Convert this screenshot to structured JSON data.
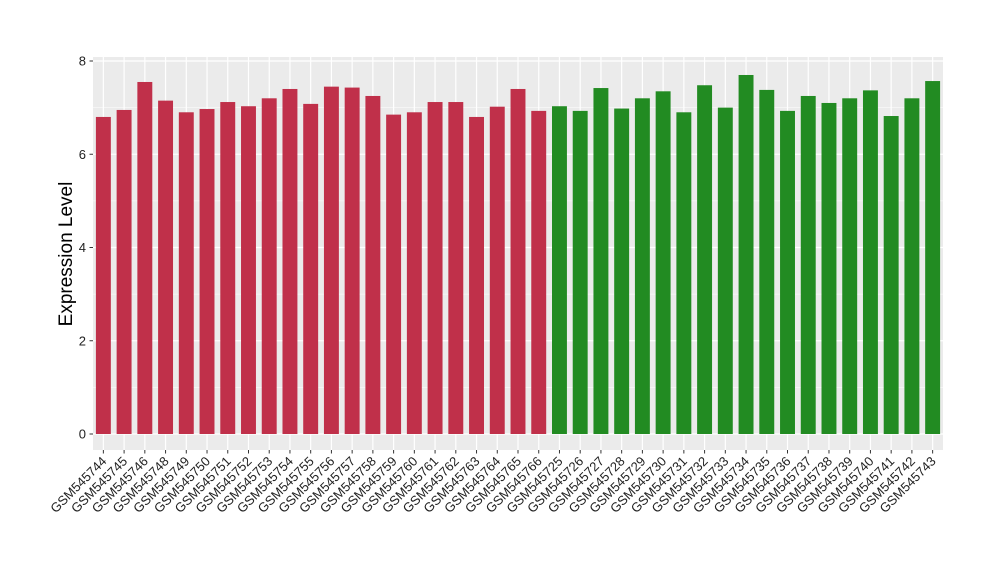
{
  "chart_data": {
    "type": "bar",
    "title": "",
    "xlabel": "",
    "ylabel": "Expression Level",
    "ylim": [
      0,
      8
    ],
    "yticks": [
      0,
      2,
      4,
      6,
      8
    ],
    "grid": true,
    "legend": "none",
    "categories": [
      "GSM545744",
      "GSM545745",
      "GSM545746",
      "GSM545748",
      "GSM545749",
      "GSM545750",
      "GSM545751",
      "GSM545752",
      "GSM545753",
      "GSM545754",
      "GSM545755",
      "GSM545756",
      "GSM545757",
      "GSM545758",
      "GSM545759",
      "GSM545760",
      "GSM545761",
      "GSM545762",
      "GSM545763",
      "GSM545764",
      "GSM545765",
      "GSM545766",
      "GSM545725",
      "GSM545726",
      "GSM545727",
      "GSM545728",
      "GSM545729",
      "GSM545730",
      "GSM545731",
      "GSM545732",
      "GSM545733",
      "GSM545734",
      "GSM545735",
      "GSM545736",
      "GSM545737",
      "GSM545738",
      "GSM545739",
      "GSM545740",
      "GSM545741",
      "GSM545742",
      "GSM545743"
    ],
    "values": [
      6.8,
      6.95,
      7.55,
      7.15,
      6.9,
      6.97,
      7.12,
      7.03,
      7.2,
      7.4,
      7.08,
      7.45,
      7.43,
      7.25,
      6.85,
      6.9,
      7.12,
      7.12,
      6.8,
      7.02,
      7.4,
      6.93,
      7.03,
      6.93,
      7.42,
      6.98,
      7.2,
      7.35,
      6.9,
      7.48,
      7.0,
      7.7,
      7.38,
      6.93,
      7.25,
      7.1,
      7.2,
      7.37,
      6.82,
      7.2,
      7.57
    ],
    "groups": [
      {
        "color": "#c0304a",
        "count": 22
      },
      {
        "color": "#228b22",
        "count": 19
      }
    ],
    "colors": {
      "panel_background": "#ebebeb",
      "gridline": "#ffffff",
      "text": "#000000"
    }
  }
}
